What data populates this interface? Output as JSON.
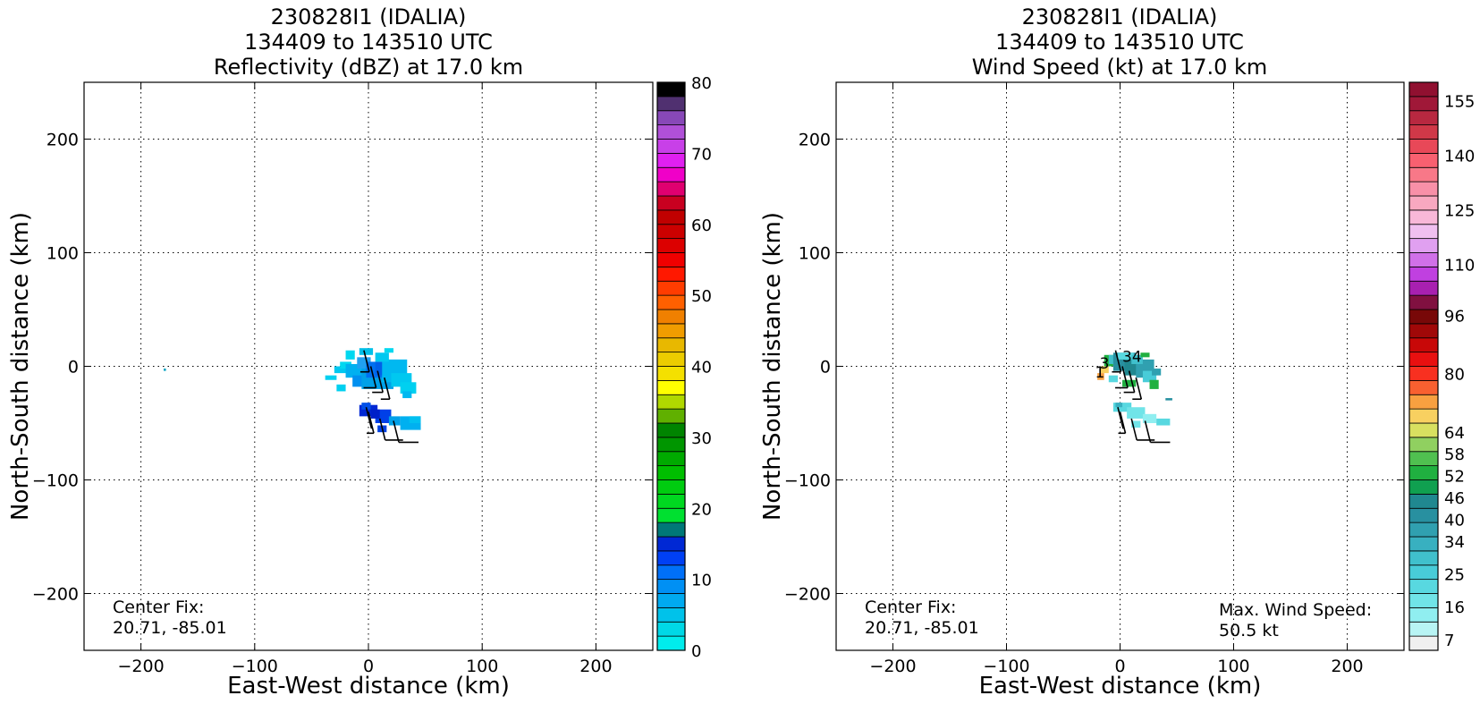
{
  "chart_data": [
    {
      "type": "heatmap",
      "title_lines": [
        "230828I1 (IDALIA)",
        "134409 to 143510 UTC",
        "Reflectivity (dBZ) at 17.0 km"
      ],
      "xlabel": "East-West distance (km)",
      "ylabel": "North-South distance (km)",
      "xlim": [
        -250,
        250
      ],
      "ylim": [
        -250,
        250
      ],
      "xticks": [
        -200,
        -100,
        0,
        100,
        200
      ],
      "yticks": [
        -200,
        -100,
        0,
        100,
        200
      ],
      "xtick_labels": [
        "−200",
        "−100",
        "0",
        "100",
        "200"
      ],
      "ytick_labels": [
        "−200",
        "−100",
        "0",
        "100",
        "200"
      ],
      "grid": true,
      "annotation_lines": [
        "Center Fix:",
        "20.71, -85.01"
      ],
      "colorbar": {
        "min": 0,
        "max": 80,
        "ticks": [
          0,
          10,
          20,
          30,
          40,
          50,
          60,
          70,
          80
        ],
        "tick_labels": [
          "0",
          "10",
          "20",
          "30",
          "40",
          "50",
          "60",
          "70",
          "80"
        ],
        "colors": [
          "#00ecec",
          "#00d8e6",
          "#00c2ea",
          "#00aaf0",
          "#0090f4",
          "#0070f8",
          "#0040f4",
          "#0028d4",
          "#007878",
          "#00e030",
          "#00d820",
          "#00cc10",
          "#00be00",
          "#00aa00",
          "#009600",
          "#008400",
          "#60b000",
          "#b0d800",
          "#ffff00",
          "#f4e000",
          "#eccc00",
          "#e8b800",
          "#f09c00",
          "#f08000",
          "#ff6000",
          "#ff3c00",
          "#ff1800",
          "#f00000",
          "#dc0000",
          "#cc0000",
          "#c00000",
          "#c80020",
          "#e00070",
          "#f000c8",
          "#e020f0",
          "#c840e8",
          "#b050d8",
          "#8848b8",
          "#503070",
          "#000000"
        ]
      },
      "field": {
        "cells": [
          [
            -180,
            -4,
            2,
            2,
            "#00a0c0"
          ],
          [
            -38,
            -12,
            10,
            4,
            "#00d0f0"
          ],
          [
            -30,
            -6,
            14,
            6,
            "#00c8f0"
          ],
          [
            -25,
            -2,
            10,
            6,
            "#00d8f0"
          ],
          [
            -20,
            -10,
            18,
            12,
            "#00b0f0"
          ],
          [
            -14,
            -18,
            14,
            10,
            "#0090f0"
          ],
          [
            -10,
            -2,
            12,
            10,
            "#20a0f0"
          ],
          [
            -6,
            -20,
            28,
            18,
            "#00a0e8"
          ],
          [
            -2,
            -10,
            14,
            14,
            "#0070f0"
          ],
          [
            6,
            -8,
            12,
            12,
            "#0060e8"
          ],
          [
            12,
            -14,
            22,
            20,
            "#00b8f0"
          ],
          [
            20,
            -18,
            18,
            12,
            "#00c8f0"
          ],
          [
            28,
            -24,
            14,
            10,
            "#00d0f0"
          ],
          [
            -20,
            6,
            8,
            8,
            "#00d8f0"
          ],
          [
            -8,
            10,
            12,
            6,
            "#00c0e8"
          ],
          [
            6,
            4,
            12,
            8,
            "#00c8f0"
          ],
          [
            14,
            12,
            8,
            4,
            "#00d8f0"
          ],
          [
            -28,
            -22,
            8,
            6,
            "#00d0f0"
          ],
          [
            30,
            -28,
            8,
            6,
            "#00b8f0"
          ],
          [
            -8,
            -44,
            16,
            10,
            "#0028d4"
          ],
          [
            6,
            -50,
            14,
            12,
            "#0040e8"
          ],
          [
            18,
            -52,
            10,
            8,
            "#00a0e8"
          ],
          [
            28,
            -56,
            18,
            12,
            "#00b0f0"
          ],
          [
            36,
            -50,
            10,
            6,
            "#00c0f0"
          ],
          [
            -6,
            -38,
            8,
            6,
            "#0050e8"
          ],
          [
            8,
            -58,
            8,
            6,
            "#0040e0"
          ],
          [
            2,
            -46,
            8,
            8,
            "#0020c8"
          ]
        ]
      }
    },
    {
      "type": "heatmap",
      "title_lines": [
        "230828I1 (IDALIA)",
        "134409 to 143510 UTC",
        "Wind Speed (kt) at 17.0 km"
      ],
      "xlabel": "East-West distance (km)",
      "ylabel": "North-South distance (km)",
      "xlim": [
        -250,
        250
      ],
      "ylim": [
        -250,
        250
      ],
      "xticks": [
        -200,
        -100,
        0,
        100,
        200
      ],
      "yticks": [
        -200,
        -100,
        0,
        100,
        200
      ],
      "xtick_labels": [
        "−200",
        "−100",
        "0",
        "100",
        "200"
      ],
      "ytick_labels": [
        "−200",
        "−100",
        "0",
        "100",
        "200"
      ],
      "grid": true,
      "annotation_lines": [
        "Center Fix:",
        "20.71, -85.01"
      ],
      "annotation_right_lines": [
        "Max. Wind Speed:",
        "50.5 kt"
      ],
      "contour_labels": [
        {
          "text": "34",
          "x": 2,
          "y": 4
        },
        {
          "text": "3",
          "x": -18,
          "y": -2
        },
        {
          "text": "1",
          "x": -22,
          "y": -10
        }
      ],
      "colorbar": {
        "min": 4,
        "max": 160,
        "ticks": [
          7,
          16,
          25,
          34,
          40,
          46,
          52,
          58,
          64,
          80,
          96,
          110,
          125,
          140,
          155
        ],
        "tick_labels": [
          "7",
          "16",
          "25",
          "34",
          "40",
          "46",
          "52",
          "58",
          "64",
          "80",
          "96",
          "110",
          "125",
          "140",
          "155"
        ],
        "colors": [
          "#f0f0f0",
          "#b8f4f4",
          "#90eef0",
          "#70e4e8",
          "#58d8e0",
          "#48ccd8",
          "#40c0cc",
          "#38b0c0",
          "#30a0b0",
          "#2890a0",
          "#208890",
          "#10a050",
          "#20b040",
          "#50c050",
          "#90d060",
          "#d8e060",
          "#f8d060",
          "#f8a040",
          "#f86030",
          "#f83020",
          "#e81010",
          "#c80808",
          "#a00808",
          "#780808",
          "#801040",
          "#a820b0",
          "#c040e0",
          "#d070e8",
          "#e0a0f0",
          "#f0c0f0",
          "#f8b8d8",
          "#f8a8c0",
          "#f890a8",
          "#f87888",
          "#f86070",
          "#e84858",
          "#d03848",
          "#b82840",
          "#a01838",
          "#901030"
        ]
      },
      "field": {
        "cells": [
          [
            -14,
            0,
            8,
            10,
            "#20b040"
          ],
          [
            -18,
            -6,
            8,
            6,
            "#f8d060"
          ],
          [
            -20,
            -12,
            6,
            6,
            "#f8a040"
          ],
          [
            -10,
            2,
            14,
            8,
            "#40c0cc"
          ],
          [
            -6,
            -4,
            20,
            16,
            "#2890a0"
          ],
          [
            4,
            -8,
            16,
            14,
            "#208890"
          ],
          [
            14,
            -10,
            16,
            16,
            "#30a0b0"
          ],
          [
            20,
            -14,
            12,
            10,
            "#48ccd8"
          ],
          [
            26,
            -20,
            8,
            8,
            "#20b040"
          ],
          [
            28,
            -8,
            8,
            6,
            "#30a0b0"
          ],
          [
            -2,
            6,
            14,
            6,
            "#58d8e0"
          ],
          [
            10,
            2,
            10,
            8,
            "#40c0cc"
          ],
          [
            18,
            8,
            8,
            4,
            "#20b040"
          ],
          [
            -10,
            -14,
            8,
            6,
            "#58d8e0"
          ],
          [
            2,
            -18,
            12,
            6,
            "#20b040"
          ],
          [
            40,
            -30,
            6,
            2,
            "#2890a0"
          ],
          [
            -6,
            -40,
            16,
            8,
            "#58d8e0"
          ],
          [
            6,
            -46,
            16,
            10,
            "#70e4e8"
          ],
          [
            20,
            -50,
            12,
            8,
            "#90eef0"
          ],
          [
            32,
            -52,
            12,
            6,
            "#58d8e0"
          ],
          [
            10,
            -54,
            8,
            6,
            "#70e4e8"
          ],
          [
            -4,
            -36,
            6,
            4,
            "#38b0c0"
          ]
        ]
      },
      "wind_summary": {
        "max_wind_speed_kt": 50.5
      }
    }
  ]
}
